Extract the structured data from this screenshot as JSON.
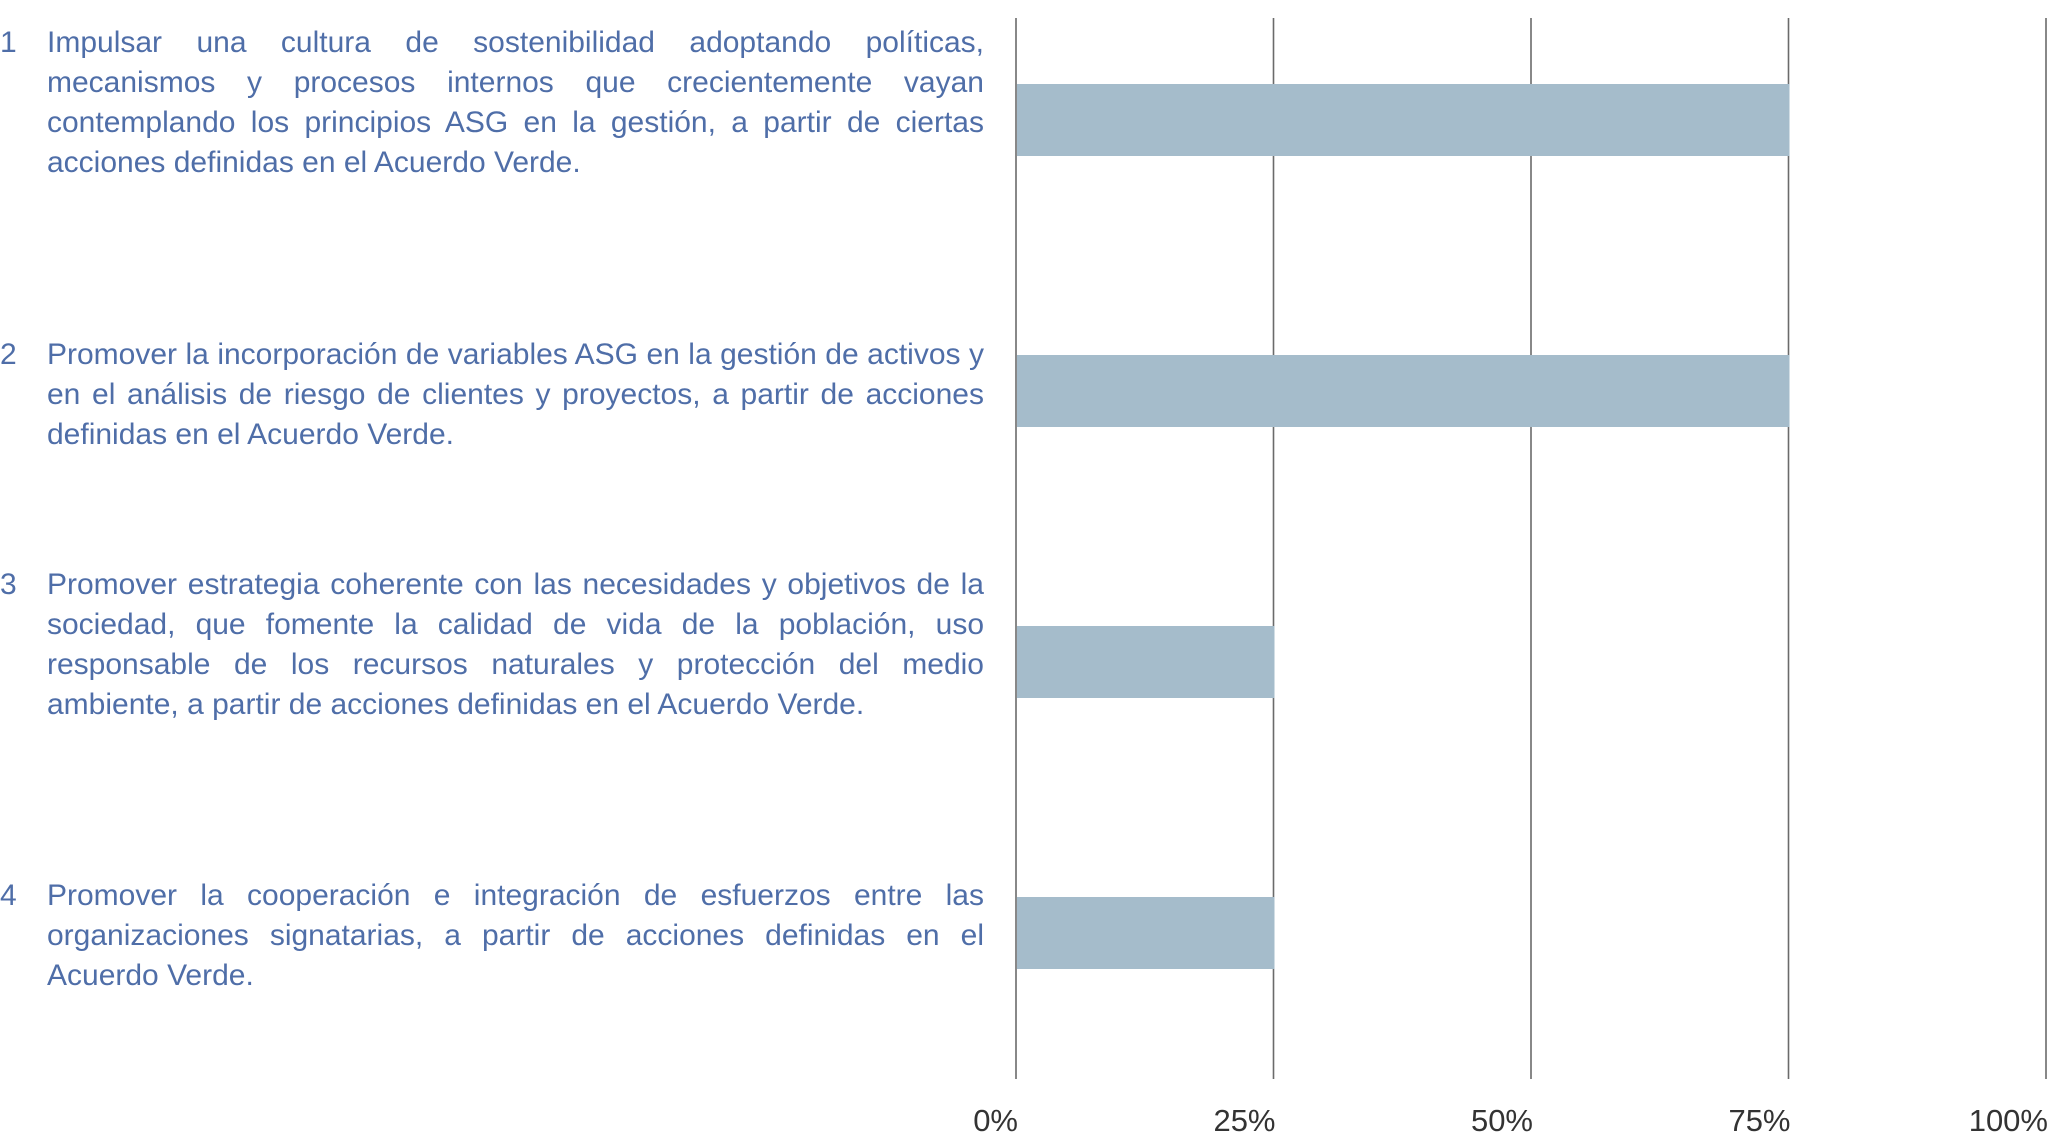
{
  "chart_data": {
    "type": "barh",
    "category_numbers": [
      "1",
      "2",
      "3",
      "4"
    ],
    "categories": [
      "Impulsar una cultura de sostenibilidad adoptando políticas, mecanismos y procesos internos que creciente­mente vayan contemplando los principios ASG en la gestión, a partir de ciertas acciones definidas en el Acuer­do Verde.",
      "Promover la incorporación de variables ASG en la gestión de activos y en el análisis de riesgo de clientes y proyec­tos, a partir de acciones definidas en el Acuerdo Verde.",
      "Promover estrategia coherente con las necesidades y objetivos de la sociedad, que fomente la calidad de vida de la población, uso responsable de los recursos naturales y protección del medio ambiente, a partir de acciones definidas en el Acuerdo Verde.",
      "Promover la cooperación e integración de esfuerzos entre las organizaciones signatarias, a partir de acciones defini­das en el Acuerdo Verde."
    ],
    "values": [
      75,
      75,
      25,
      25
    ],
    "color": "#a5bccb",
    "xlim": [
      0,
      100
    ],
    "xticks": [
      {
        "value": 0,
        "label": "0%"
      },
      {
        "value": 25,
        "label": "25%"
      },
      {
        "value": 50,
        "label": "50%"
      },
      {
        "value": 75,
        "label": "75%"
      },
      {
        "value": 100,
        "label": "100%"
      }
    ],
    "grid": true
  }
}
